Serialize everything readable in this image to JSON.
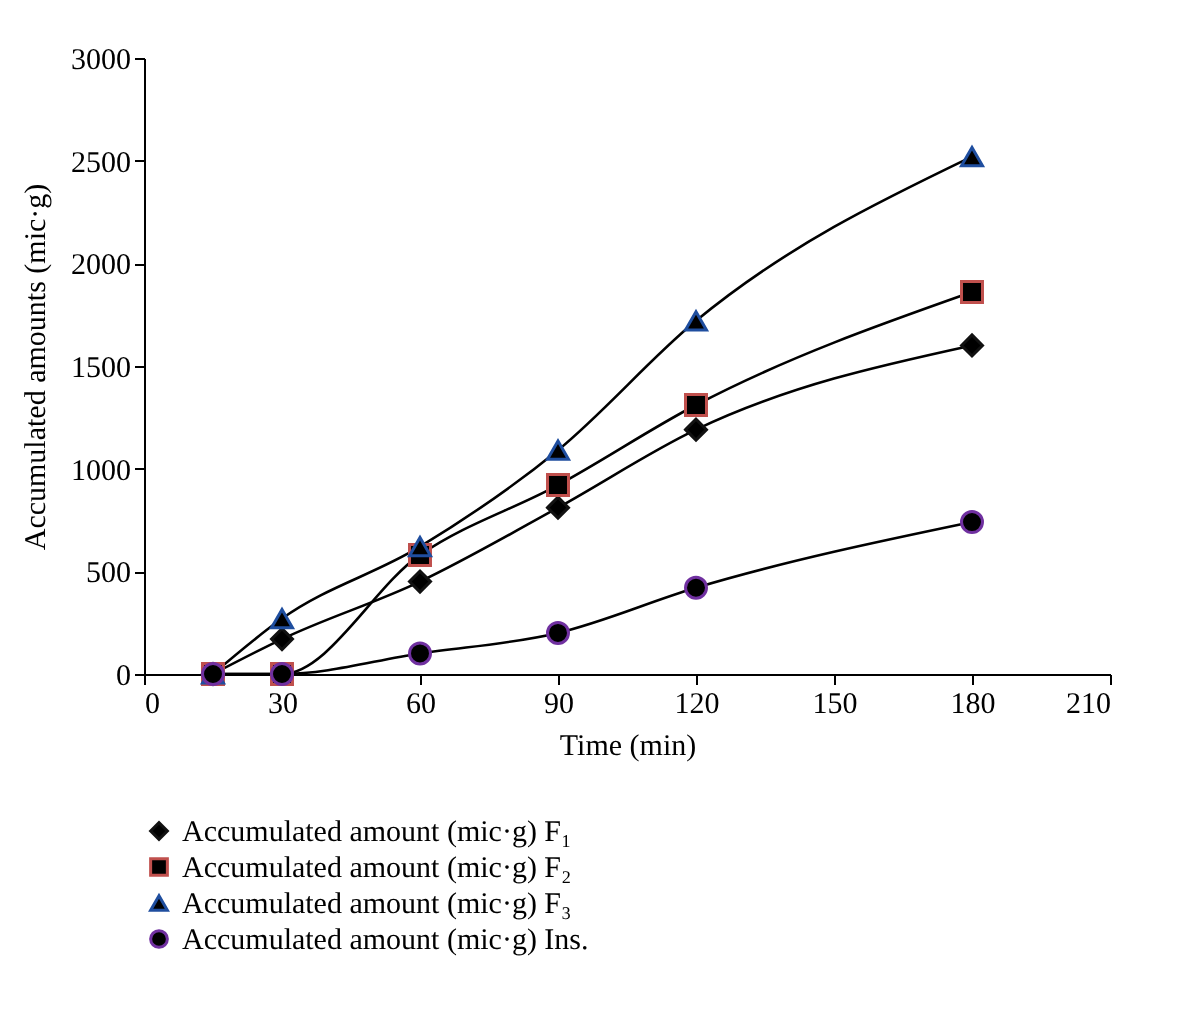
{
  "chart_data": {
    "type": "line",
    "xlabel": "Time (min)",
    "ylabel": "Accumulated amounts (mic·g)",
    "x": [
      15,
      30,
      60,
      90,
      120,
      180
    ],
    "xlim": [
      0,
      210
    ],
    "xticks": [
      0,
      30,
      60,
      90,
      120,
      150,
      180,
      210
    ],
    "ylim": [
      0,
      3000
    ],
    "yticks": [
      0,
      500,
      1000,
      1500,
      2000,
      2500,
      3000
    ],
    "grid": false,
    "legend": "bottom",
    "line_style": "solid",
    "series": [
      {
        "name": "Accumulated amount (mic·g) F₁",
        "color": "#111111",
        "marker": "diamond",
        "values": [
          0,
          170,
          450,
          810,
          1190,
          1600
        ]
      },
      {
        "name": "Accumulated amount (mic·g) F₂",
        "color": "#c0504d",
        "marker": "square",
        "values": [
          0,
          0,
          580,
          920,
          1310,
          1860
        ]
      },
      {
        "name": "Accumulated amount (mic·g) F₃",
        "color": "#1f4e9f",
        "marker": "triangle",
        "values": [
          0,
          270,
          620,
          1090,
          1720,
          2520
        ]
      },
      {
        "name": "Accumulated amount (mic·g) Ins.",
        "color": "#7030a0",
        "marker": "circle",
        "values": [
          0,
          0,
          100,
          200,
          420,
          740
        ]
      }
    ]
  }
}
